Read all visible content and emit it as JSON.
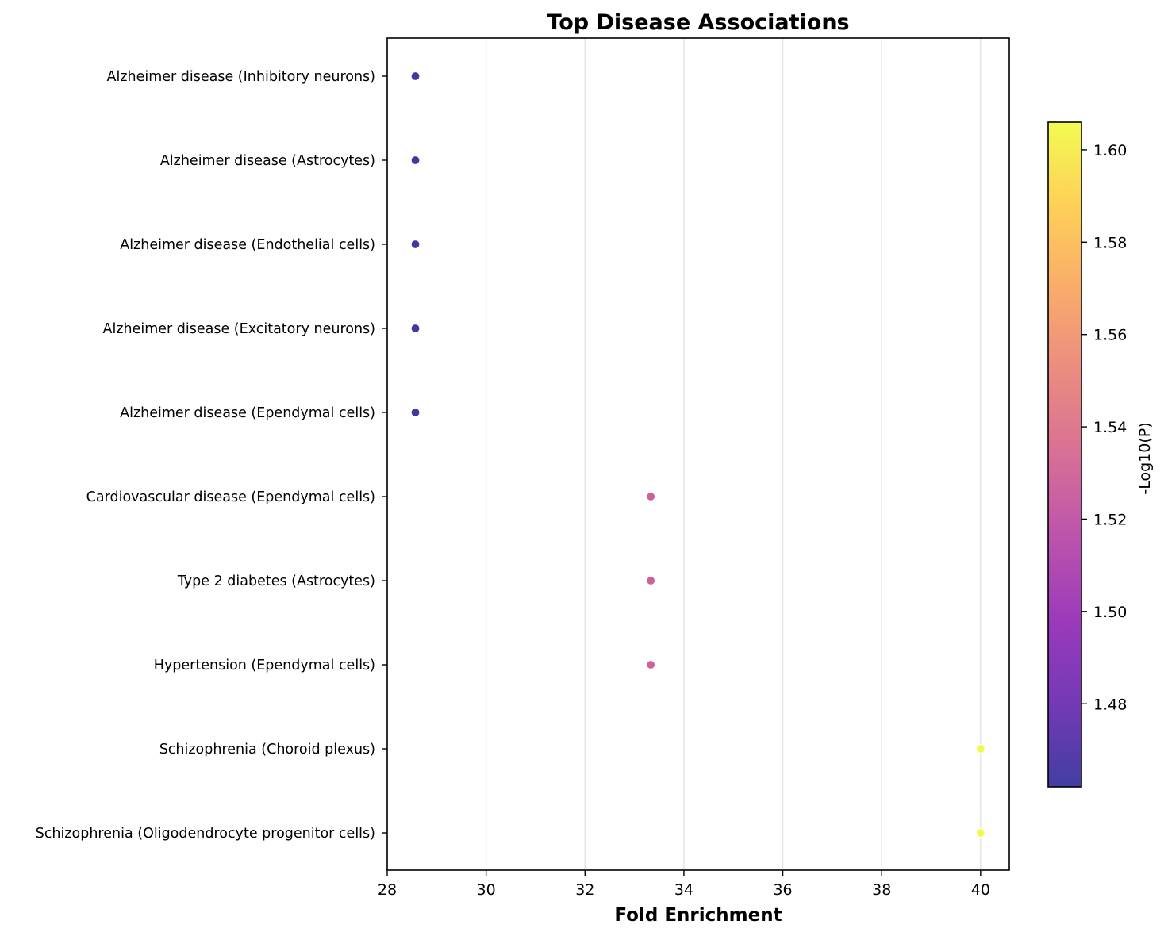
{
  "chart_data": {
    "type": "scatter",
    "title": "Top Disease Associations",
    "xlabel": "Fold Enrichment",
    "ylabel": "",
    "xlim": [
      28,
      40.58
    ],
    "xticks": [
      28,
      30,
      32,
      34,
      36,
      38,
      40
    ],
    "grid": "vertical",
    "categories": [
      "Alzheimer disease (Inhibitory neurons)",
      "Alzheimer disease (Astrocytes)",
      "Alzheimer disease (Endothelial cells)",
      "Alzheimer disease (Excitatory neurons)",
      "Alzheimer disease (Ependymal cells)",
      "Cardiovascular disease (Ependymal cells)",
      "Type 2 diabetes (Astrocytes)",
      "Hypertension (Ependymal cells)",
      "Schizophrenia (Choroid plexus)",
      "Schizophrenia (Oligodendrocyte progenitor cells)"
    ],
    "x": [
      28.57,
      28.57,
      28.57,
      28.57,
      28.57,
      33.33,
      33.33,
      33.33,
      40.0,
      40.0
    ],
    "color_values": [
      1.462,
      1.462,
      1.462,
      1.462,
      1.462,
      1.528,
      1.528,
      1.528,
      1.606,
      1.606
    ],
    "colorbar": {
      "label": "-Log10(P)",
      "colormap": "plasma",
      "range": [
        1.462,
        1.606
      ],
      "ticks": [
        "1.48",
        "1.50",
        "1.52",
        "1.54",
        "1.56",
        "1.58",
        "1.60"
      ]
    }
  }
}
